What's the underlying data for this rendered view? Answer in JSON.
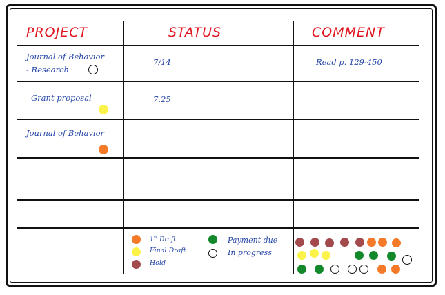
{
  "headers": {
    "project": "PROJECT",
    "status": "STATUS",
    "comment": "COMMENT"
  },
  "rows": [
    {
      "project_line1": "Journal of Behavior",
      "project_line2": "- Research",
      "status": "7/14",
      "comment": "Read p. 129-450",
      "marker": "in-progress"
    },
    {
      "project_line1": "Grant proposal",
      "status": "7.25",
      "marker": "final-draft"
    },
    {
      "project_line1": "Journal of Behavior",
      "marker": "first-draft"
    }
  ],
  "legend": {
    "first_draft_prefix": "1",
    "first_draft_sup": "st",
    "first_draft_suffix": " Draft",
    "final_draft": "Final Draft",
    "hold": "Hold",
    "payment_due": "Payment due",
    "in_progress": "In progress"
  },
  "colors": {
    "first_draft": "#f47a2a",
    "final_draft": "#fbf24a",
    "hold": "#a24a4c",
    "payment_due": "#14892c",
    "in_progress": "outline",
    "header_ink": "#e0141e",
    "entry_ink": "#2747a8"
  },
  "magnet_tray": {
    "row1": [
      "hold",
      "hold",
      "hold",
      "hold",
      "hold",
      "first-draft",
      "first-draft",
      "first-draft"
    ],
    "row2": [
      "final-draft",
      "final-draft",
      "final-draft",
      "payment-due",
      "payment-due",
      "payment-due",
      "in-progress"
    ],
    "row3": [
      "payment-due",
      "payment-due",
      "in-progress",
      "in-progress",
      "in-progress",
      "first-draft",
      "first-draft"
    ]
  }
}
